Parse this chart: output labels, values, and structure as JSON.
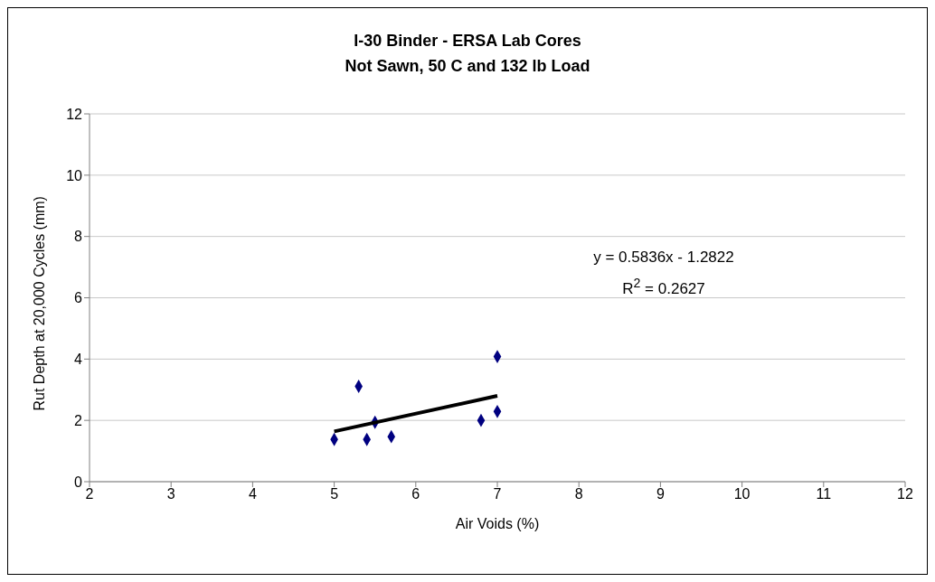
{
  "chart_data": {
    "type": "scatter",
    "title": "I-30 Binder - ERSA Lab Cores\nNot Sawn, 50 C and 132 lb Load",
    "xlabel": "Air Voids (%)",
    "ylabel": "Rut Depth at 20,000 Cycles (mm)",
    "annotations": [
      "y = 0.5836x - 1.2822",
      "R$^{2}$ = 0.2627"
    ],
    "series": [
      {
        "color": "#000080",
        "marker": "diamond",
        "x": [
          5,
          5.3,
          5.4,
          5.5,
          5.7,
          6.8,
          7,
          7
        ],
        "values": [
          1.38,
          3.11,
          1.38,
          1.94,
          1.47,
          2.0,
          2.29,
          4.08
        ]
      },
      {
        "type": "line",
        "color": "#000000",
        "marker": "none",
        "x": [
          5,
          7
        ],
        "values": [
          1.64,
          2.8
        ]
      }
    ],
    "xlim": [
      2,
      12
    ],
    "xticks": [
      2,
      3,
      4,
      5,
      6,
      7,
      8,
      9,
      10,
      11,
      12
    ],
    "ylim": [
      0,
      12
    ],
    "yticks": [
      0,
      2,
      4,
      6,
      8,
      10,
      12
    ],
    "grid": "y"
  }
}
